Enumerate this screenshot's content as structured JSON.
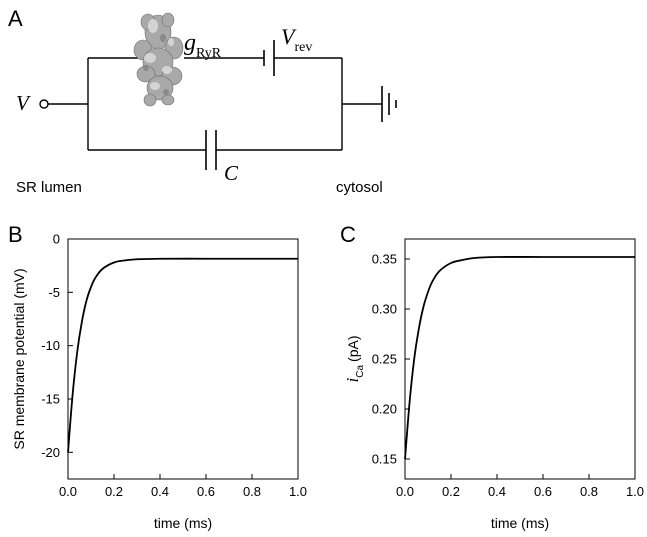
{
  "panels": {
    "a": "A",
    "b": "B",
    "c": "C"
  },
  "circuit": {
    "voltage_label": "V",
    "conductance_symbol": "g",
    "conductance_subscript": "RyR",
    "reversal_symbol": "V",
    "reversal_subscript": "rev",
    "capacitor_label": "C",
    "left_label": "SR lumen",
    "right_label": "cytosol"
  },
  "chart_data": [
    {
      "type": "line",
      "panel": "B",
      "xlabel": "time (ms)",
      "ylabel": "SR membrane potential (mV)",
      "xlim": [
        0.0,
        1.0
      ],
      "ylim": [
        -22.5,
        0
      ],
      "x_ticks": [
        "0.0",
        "0.2",
        "0.4",
        "0.6",
        "0.8",
        "1.0"
      ],
      "y_ticks": [
        "-20",
        "-15",
        "-10",
        "-5",
        "0"
      ],
      "series": [
        {
          "x": [
            0.0,
            0.02,
            0.04,
            0.06,
            0.08,
            0.1,
            0.12,
            0.15,
            0.2,
            0.25,
            0.3,
            0.4,
            0.6,
            0.8,
            1.0
          ],
          "y": [
            -20.0,
            -14.6,
            -10.6,
            -7.8,
            -5.8,
            -4.5,
            -3.6,
            -2.8,
            -2.2,
            -2.0,
            -1.9,
            -1.85,
            -1.85,
            -1.85,
            -1.85
          ]
        }
      ]
    },
    {
      "type": "line",
      "panel": "C",
      "xlabel": "time (ms)",
      "ylabel_symbol": "i",
      "ylabel_subscript": "Ca",
      "ylabel_unit": "(pA)",
      "xlim": [
        0.0,
        1.0
      ],
      "ylim": [
        0.13,
        0.37
      ],
      "x_ticks": [
        "0.0",
        "0.2",
        "0.4",
        "0.6",
        "0.8",
        "1.0"
      ],
      "y_ticks": [
        "0.15",
        "0.20",
        "0.25",
        "0.30",
        "0.35"
      ],
      "series": [
        {
          "x": [
            0.0,
            0.02,
            0.04,
            0.06,
            0.08,
            0.1,
            0.12,
            0.15,
            0.2,
            0.25,
            0.3,
            0.4,
            0.6,
            0.8,
            1.0
          ],
          "y": [
            0.15,
            0.207,
            0.25,
            0.28,
            0.302,
            0.317,
            0.328,
            0.338,
            0.346,
            0.349,
            0.351,
            0.352,
            0.352,
            0.352,
            0.352
          ]
        }
      ]
    }
  ]
}
